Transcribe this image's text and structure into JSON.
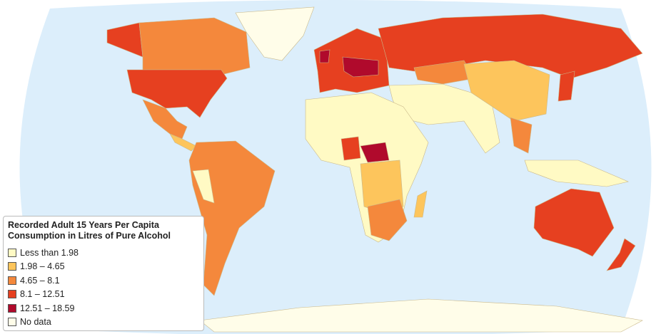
{
  "legend": {
    "title": "Recorded Adult 15 Years Per Capita Consumption in Litres of Pure Alcohol",
    "items": [
      {
        "label": "Less than 1.98",
        "color": "#fffac4"
      },
      {
        "label": "1.98 – 4.65",
        "color": "#fdc55c"
      },
      {
        "label": "4.65 – 8.1",
        "color": "#f4883c"
      },
      {
        "label": "8.1 – 12.51",
        "color": "#e64020"
      },
      {
        "label": "12.51 – 18.59",
        "color": "#b00a2c"
      },
      {
        "label": "No data",
        "color": "#fffde9"
      }
    ]
  }
}
